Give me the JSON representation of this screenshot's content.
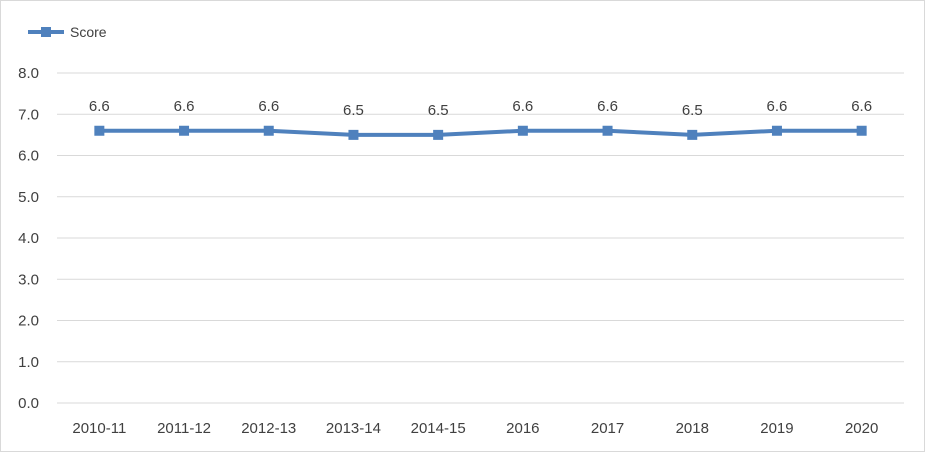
{
  "chart_data": {
    "type": "line",
    "title": "",
    "xlabel": "",
    "ylabel": "",
    "categories": [
      "2010-11",
      "2011-12",
      "2012-13",
      "2013-14",
      "2014-15",
      "2016",
      "2017",
      "2018",
      "2019",
      "2020"
    ],
    "series": [
      {
        "name": "Score",
        "values": [
          6.6,
          6.6,
          6.6,
          6.5,
          6.5,
          6.6,
          6.6,
          6.5,
          6.6,
          6.6
        ],
        "data_labels": [
          "6.6",
          "6.6",
          "6.6",
          "6.5",
          "6.5",
          "6.6",
          "6.6",
          "6.5",
          "6.6",
          "6.6"
        ],
        "color": "#4f81bd",
        "marker": "square"
      }
    ],
    "ylim": [
      0,
      8
    ],
    "yticks": [
      0,
      1,
      2,
      3,
      4,
      5,
      6,
      7,
      8
    ],
    "ytick_labels": [
      "0.0",
      "1.0",
      "2.0",
      "3.0",
      "4.0",
      "5.0",
      "6.0",
      "7.0",
      "8.0"
    ],
    "grid": true,
    "legend_position": "top-left"
  }
}
